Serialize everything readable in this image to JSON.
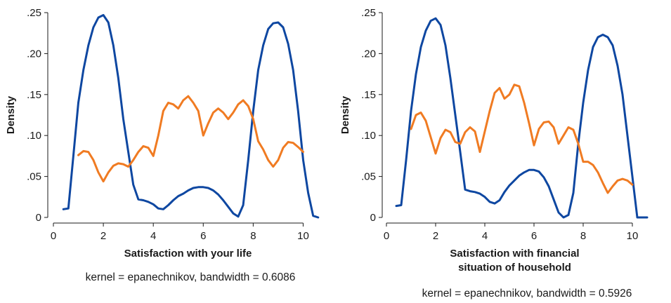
{
  "chart_data": [
    {
      "type": "line",
      "xlabel": "Satisfaction with your life",
      "xlabel_lines": [
        "Satisfaction with your life"
      ],
      "ylabel": "Density",
      "note": "kernel = epanechnikov, bandwidth = 0.6086",
      "xlim": [
        0,
        11
      ],
      "ylim": [
        0,
        0.25
      ],
      "x_ticks": [
        0,
        2,
        4,
        6,
        8,
        10
      ],
      "y_ticks": [
        0,
        0.05,
        0.1,
        0.15,
        0.2,
        0.25
      ],
      "y_tick_labels": [
        "0",
        ".05",
        ".10",
        ".15",
        ".20",
        ".25"
      ],
      "series": [
        {
          "color": "#0e47a1",
          "x": [
            0.4,
            0.6,
            0.8,
            1.0,
            1.2,
            1.4,
            1.6,
            1.8,
            2.0,
            2.2,
            2.4,
            2.6,
            2.8,
            3.0,
            3.2,
            3.4,
            3.6,
            3.8,
            4.0,
            4.2,
            4.4,
            4.6,
            4.8,
            5.0,
            5.2,
            5.4,
            5.6,
            5.8,
            6.0,
            6.2,
            6.4,
            6.6,
            6.8,
            7.0,
            7.2,
            7.4,
            7.6,
            7.8,
            8.0,
            8.2,
            8.4,
            8.6,
            8.8,
            9.0,
            9.2,
            9.4,
            9.6,
            9.8,
            10.0,
            10.2,
            10.4,
            10.6
          ],
          "y": [
            0.01,
            0.011,
            0.075,
            0.14,
            0.18,
            0.21,
            0.232,
            0.244,
            0.247,
            0.238,
            0.21,
            0.17,
            0.12,
            0.08,
            0.04,
            0.022,
            0.021,
            0.019,
            0.016,
            0.011,
            0.01,
            0.015,
            0.021,
            0.026,
            0.029,
            0.033,
            0.036,
            0.037,
            0.037,
            0.036,
            0.033,
            0.028,
            0.021,
            0.013,
            0.005,
            0.001,
            0.015,
            0.07,
            0.13,
            0.18,
            0.21,
            0.23,
            0.237,
            0.238,
            0.232,
            0.212,
            0.18,
            0.13,
            0.07,
            0.03,
            0.002,
            0.0
          ]
        },
        {
          "color": "#f07b22",
          "x": [
            1.0,
            1.2,
            1.4,
            1.6,
            1.8,
            2.0,
            2.2,
            2.4,
            2.6,
            2.8,
            3.0,
            3.2,
            3.4,
            3.6,
            3.8,
            4.0,
            4.2,
            4.4,
            4.6,
            4.8,
            5.0,
            5.2,
            5.4,
            5.6,
            5.8,
            6.0,
            6.2,
            6.4,
            6.6,
            6.8,
            7.0,
            7.2,
            7.4,
            7.6,
            7.8,
            8.0,
            8.2,
            8.4,
            8.6,
            8.8,
            9.0,
            9.2,
            9.4,
            9.6,
            9.8,
            10.0
          ],
          "y": [
            0.076,
            0.081,
            0.08,
            0.07,
            0.055,
            0.044,
            0.055,
            0.063,
            0.066,
            0.065,
            0.062,
            0.07,
            0.08,
            0.087,
            0.085,
            0.075,
            0.1,
            0.13,
            0.14,
            0.138,
            0.133,
            0.143,
            0.148,
            0.14,
            0.13,
            0.1,
            0.115,
            0.128,
            0.133,
            0.128,
            0.12,
            0.128,
            0.138,
            0.143,
            0.136,
            0.12,
            0.093,
            0.083,
            0.07,
            0.062,
            0.07,
            0.085,
            0.092,
            0.091,
            0.086,
            0.08
          ]
        }
      ]
    },
    {
      "type": "line",
      "xlabel": "Satisfaction with financial situation of household",
      "xlabel_lines": [
        "Satisfaction with financial",
        "situation of household"
      ],
      "ylabel": "Density",
      "note": "kernel = epanechnikov, bandwidth = 0.5926",
      "xlim": [
        0,
        11
      ],
      "ylim": [
        0,
        0.25
      ],
      "x_ticks": [
        0,
        2,
        4,
        6,
        8,
        10
      ],
      "y_ticks": [
        0,
        0.05,
        0.1,
        0.15,
        0.2,
        0.25
      ],
      "y_tick_labels": [
        "0",
        ".05",
        ".10",
        ".15",
        ".20",
        ".25"
      ],
      "series": [
        {
          "color": "#0e47a1",
          "x": [
            0.4,
            0.6,
            0.8,
            1.0,
            1.2,
            1.4,
            1.6,
            1.8,
            2.0,
            2.2,
            2.4,
            2.6,
            2.8,
            3.0,
            3.2,
            3.4,
            3.6,
            3.8,
            4.0,
            4.2,
            4.4,
            4.6,
            4.8,
            5.0,
            5.2,
            5.4,
            5.6,
            5.8,
            6.0,
            6.2,
            6.4,
            6.6,
            6.8,
            7.0,
            7.2,
            7.4,
            7.6,
            7.8,
            8.0,
            8.2,
            8.4,
            8.6,
            8.8,
            9.0,
            9.2,
            9.4,
            9.6,
            9.8,
            10.0,
            10.2,
            10.4,
            10.6
          ],
          "y": [
            0.014,
            0.015,
            0.07,
            0.13,
            0.175,
            0.208,
            0.228,
            0.24,
            0.243,
            0.235,
            0.21,
            0.17,
            0.125,
            0.08,
            0.034,
            0.032,
            0.031,
            0.029,
            0.025,
            0.019,
            0.017,
            0.021,
            0.031,
            0.039,
            0.045,
            0.051,
            0.055,
            0.058,
            0.058,
            0.056,
            0.049,
            0.038,
            0.022,
            0.006,
            0.0,
            0.003,
            0.03,
            0.09,
            0.14,
            0.18,
            0.208,
            0.22,
            0.223,
            0.22,
            0.21,
            0.185,
            0.15,
            0.1,
            0.05,
            0.0,
            0.0,
            0.0
          ]
        },
        {
          "color": "#f07b22",
          "x": [
            1.0,
            1.2,
            1.4,
            1.6,
            1.8,
            2.0,
            2.2,
            2.4,
            2.6,
            2.8,
            3.0,
            3.2,
            3.4,
            3.6,
            3.8,
            4.0,
            4.2,
            4.4,
            4.6,
            4.8,
            5.0,
            5.2,
            5.4,
            5.6,
            5.8,
            6.0,
            6.2,
            6.4,
            6.6,
            6.8,
            7.0,
            7.2,
            7.4,
            7.6,
            7.8,
            8.0,
            8.2,
            8.4,
            8.6,
            8.8,
            9.0,
            9.2,
            9.4,
            9.6,
            9.8,
            10.0
          ],
          "y": [
            0.108,
            0.125,
            0.128,
            0.118,
            0.098,
            0.078,
            0.097,
            0.107,
            0.104,
            0.092,
            0.09,
            0.104,
            0.11,
            0.105,
            0.08,
            0.105,
            0.13,
            0.152,
            0.158,
            0.145,
            0.15,
            0.162,
            0.16,
            0.14,
            0.115,
            0.088,
            0.108,
            0.116,
            0.117,
            0.11,
            0.09,
            0.1,
            0.11,
            0.107,
            0.09,
            0.068,
            0.068,
            0.064,
            0.055,
            0.042,
            0.03,
            0.038,
            0.045,
            0.047,
            0.045,
            0.04
          ]
        }
      ]
    }
  ]
}
